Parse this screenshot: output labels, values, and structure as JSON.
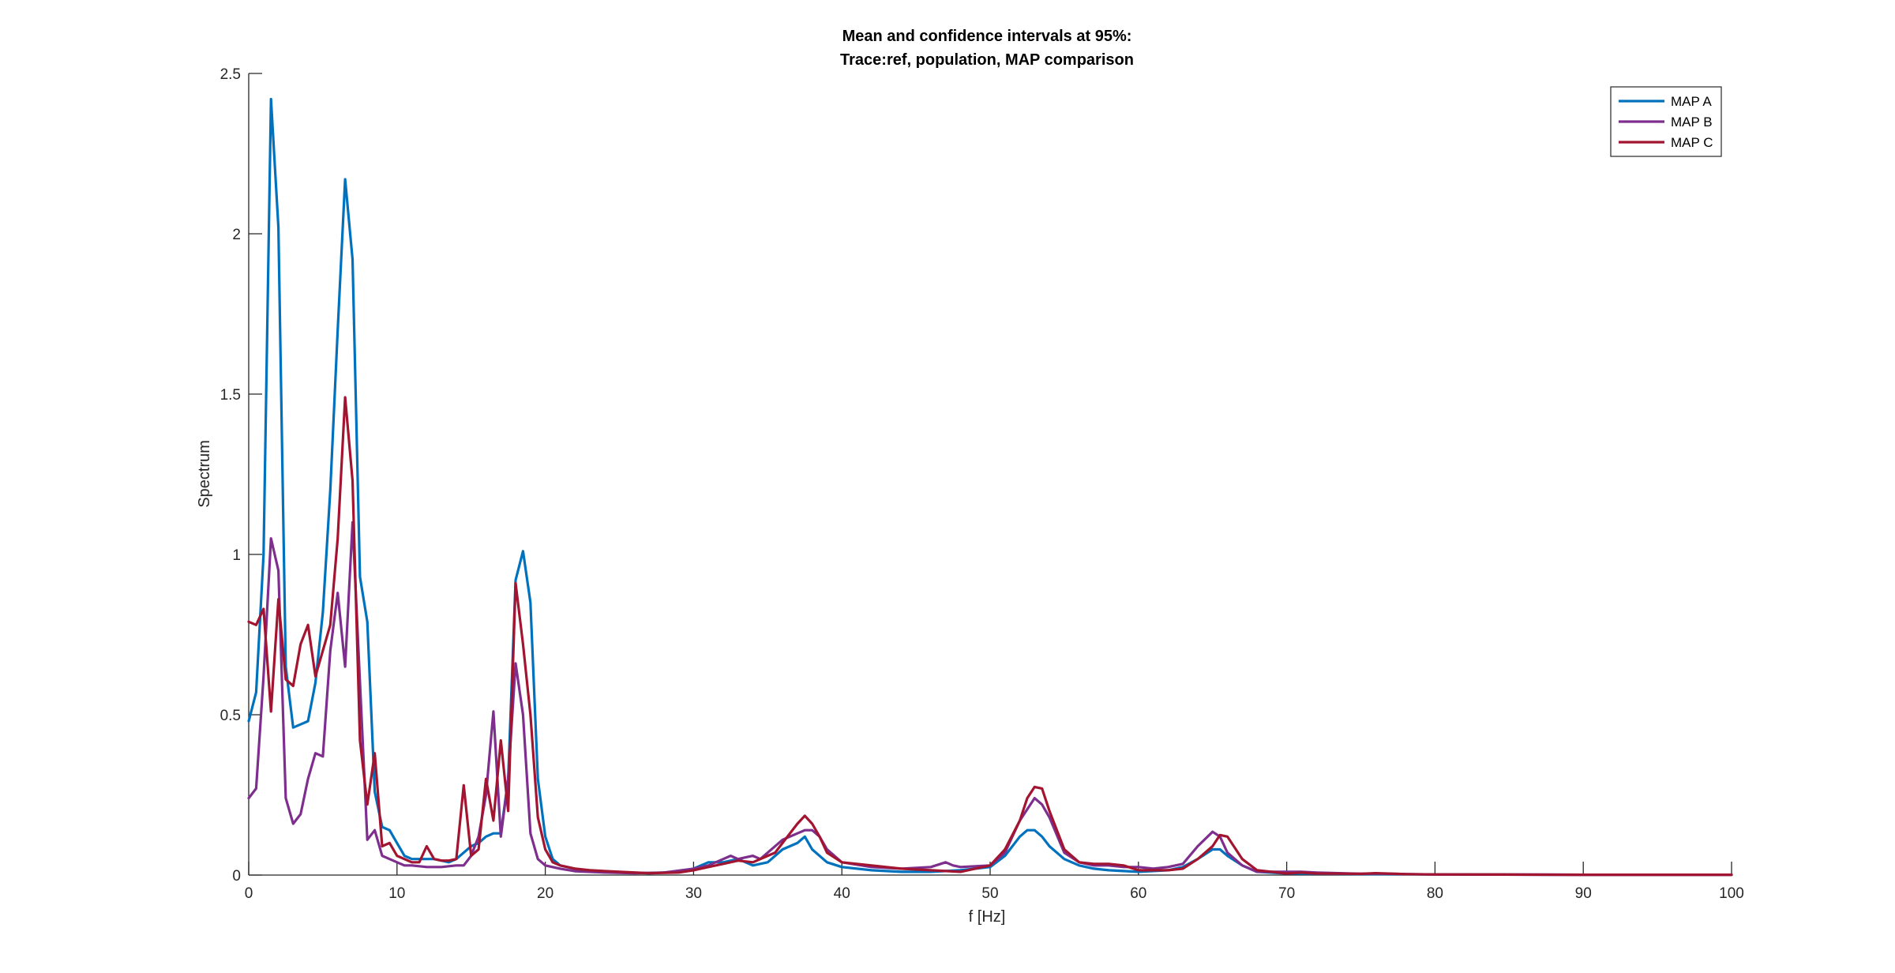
{
  "chart_data": {
    "type": "line",
    "title_line1": "Mean and confidence intervals at 95%:",
    "title_line2": "Trace:ref, population, MAP comparison",
    "xlabel": "f [Hz]",
    "ylabel": "Spectrum",
    "xlim": [
      0,
      100
    ],
    "ylim": [
      0,
      2.5
    ],
    "xticks": [
      0,
      10,
      20,
      30,
      40,
      50,
      60,
      70,
      80,
      90,
      100
    ],
    "yticks": [
      0,
      0.5,
      1,
      1.5,
      2,
      2.5
    ],
    "xtick_labels": [
      "0",
      "10",
      "20",
      "30",
      "40",
      "50",
      "60",
      "70",
      "80",
      "90",
      "100"
    ],
    "ytick_labels": [
      "0",
      "0.5",
      "1",
      "1.5",
      "2",
      "2.5"
    ],
    "grid": false,
    "legend_position": "top-right",
    "series": [
      {
        "name": "MAP A",
        "color": "#0072BD",
        "points": [
          [
            0,
            0.48
          ],
          [
            0.5,
            0.57
          ],
          [
            1,
            1.0
          ],
          [
            1.5,
            2.42
          ],
          [
            2,
            2.02
          ],
          [
            2.5,
            0.65
          ],
          [
            3,
            0.46
          ],
          [
            3.5,
            0.47
          ],
          [
            4,
            0.48
          ],
          [
            4.5,
            0.6
          ],
          [
            5,
            0.82
          ],
          [
            5.5,
            1.2
          ],
          [
            6,
            1.7
          ],
          [
            6.5,
            2.17
          ],
          [
            7,
            1.92
          ],
          [
            7.5,
            0.93
          ],
          [
            8,
            0.79
          ],
          [
            8.5,
            0.26
          ],
          [
            9,
            0.15
          ],
          [
            9.5,
            0.14
          ],
          [
            10,
            0.1
          ],
          [
            10.5,
            0.06
          ],
          [
            11,
            0.05
          ],
          [
            11.5,
            0.05
          ],
          [
            12,
            0.05
          ],
          [
            12.5,
            0.05
          ],
          [
            13,
            0.045
          ],
          [
            13.5,
            0.04
          ],
          [
            14,
            0.05
          ],
          [
            14.5,
            0.07
          ],
          [
            15,
            0.09
          ],
          [
            15.5,
            0.1
          ],
          [
            16,
            0.12
          ],
          [
            16.5,
            0.13
          ],
          [
            17,
            0.13
          ],
          [
            17.5,
            0.3
          ],
          [
            18,
            0.92
          ],
          [
            18.5,
            1.01
          ],
          [
            19,
            0.85
          ],
          [
            19.5,
            0.3
          ],
          [
            20,
            0.12
          ],
          [
            20.5,
            0.05
          ],
          [
            21,
            0.03
          ],
          [
            22,
            0.02
          ],
          [
            23,
            0.012
          ],
          [
            25,
            0.008
          ],
          [
            27,
            0.006
          ],
          [
            29,
            0.01
          ],
          [
            30,
            0.02
          ],
          [
            31,
            0.04
          ],
          [
            32,
            0.04
          ],
          [
            33,
            0.05
          ],
          [
            34,
            0.03
          ],
          [
            35,
            0.04
          ],
          [
            36,
            0.08
          ],
          [
            37,
            0.1
          ],
          [
            37.5,
            0.12
          ],
          [
            38,
            0.08
          ],
          [
            39,
            0.04
          ],
          [
            40,
            0.025
          ],
          [
            42,
            0.015
          ],
          [
            44,
            0.01
          ],
          [
            46,
            0.01
          ],
          [
            48,
            0.015
          ],
          [
            50,
            0.025
          ],
          [
            51,
            0.06
          ],
          [
            52,
            0.12
          ],
          [
            52.5,
            0.14
          ],
          [
            53,
            0.14
          ],
          [
            53.5,
            0.12
          ],
          [
            54,
            0.09
          ],
          [
            55,
            0.05
          ],
          [
            56,
            0.03
          ],
          [
            57,
            0.02
          ],
          [
            58,
            0.015
          ],
          [
            60,
            0.01
          ],
          [
            62,
            0.015
          ],
          [
            63,
            0.025
          ],
          [
            64,
            0.05
          ],
          [
            65,
            0.08
          ],
          [
            65.5,
            0.08
          ],
          [
            66,
            0.06
          ],
          [
            67,
            0.03
          ],
          [
            68,
            0.01
          ],
          [
            70,
            0.005
          ],
          [
            75,
            0.003
          ],
          [
            80,
            0.002
          ],
          [
            90,
            0.001
          ],
          [
            100,
            0.001
          ]
        ]
      },
      {
        "name": "MAP B",
        "color": "#7E2F8E",
        "points": [
          [
            0,
            0.24
          ],
          [
            0.5,
            0.27
          ],
          [
            1,
            0.62
          ],
          [
            1.5,
            1.05
          ],
          [
            2,
            0.95
          ],
          [
            2.5,
            0.24
          ],
          [
            3,
            0.16
          ],
          [
            3.5,
            0.19
          ],
          [
            4,
            0.3
          ],
          [
            4.5,
            0.38
          ],
          [
            5,
            0.37
          ],
          [
            5.5,
            0.7
          ],
          [
            6,
            0.88
          ],
          [
            6.5,
            0.65
          ],
          [
            7,
            1.1
          ],
          [
            7.5,
            0.6
          ],
          [
            8,
            0.11
          ],
          [
            8.5,
            0.14
          ],
          [
            9,
            0.06
          ],
          [
            9.5,
            0.05
          ],
          [
            10,
            0.04
          ],
          [
            10.5,
            0.03
          ],
          [
            11,
            0.03
          ],
          [
            12,
            0.025
          ],
          [
            13,
            0.025
          ],
          [
            14,
            0.03
          ],
          [
            14.5,
            0.03
          ],
          [
            15,
            0.06
          ],
          [
            15.5,
            0.12
          ],
          [
            16,
            0.25
          ],
          [
            16.5,
            0.51
          ],
          [
            17,
            0.12
          ],
          [
            17.5,
            0.3
          ],
          [
            18,
            0.66
          ],
          [
            18.5,
            0.5
          ],
          [
            19,
            0.13
          ],
          [
            19.5,
            0.05
          ],
          [
            20,
            0.03
          ],
          [
            21,
            0.02
          ],
          [
            22,
            0.012
          ],
          [
            24,
            0.008
          ],
          [
            26,
            0.006
          ],
          [
            28,
            0.008
          ],
          [
            30,
            0.02
          ],
          [
            31,
            0.03
          ],
          [
            32,
            0.05
          ],
          [
            32.5,
            0.06
          ],
          [
            33,
            0.05
          ],
          [
            34,
            0.06
          ],
          [
            34.5,
            0.05
          ],
          [
            35,
            0.07
          ],
          [
            36,
            0.11
          ],
          [
            37,
            0.13
          ],
          [
            37.5,
            0.14
          ],
          [
            38,
            0.14
          ],
          [
            38.5,
            0.12
          ],
          [
            39,
            0.08
          ],
          [
            40,
            0.04
          ],
          [
            42,
            0.025
          ],
          [
            44,
            0.02
          ],
          [
            46,
            0.025
          ],
          [
            47,
            0.04
          ],
          [
            47.5,
            0.03
          ],
          [
            48,
            0.025
          ],
          [
            50,
            0.03
          ],
          [
            51,
            0.07
          ],
          [
            52,
            0.17
          ],
          [
            53,
            0.24
          ],
          [
            53.5,
            0.22
          ],
          [
            54,
            0.18
          ],
          [
            55,
            0.07
          ],
          [
            56,
            0.04
          ],
          [
            57,
            0.03
          ],
          [
            58,
            0.03
          ],
          [
            59,
            0.025
          ],
          [
            60,
            0.025
          ],
          [
            61,
            0.02
          ],
          [
            62,
            0.025
          ],
          [
            63,
            0.035
          ],
          [
            64,
            0.09
          ],
          [
            65,
            0.135
          ],
          [
            65.5,
            0.12
          ],
          [
            66,
            0.07
          ],
          [
            67,
            0.03
          ],
          [
            68,
            0.01
          ],
          [
            70,
            0.01
          ],
          [
            71,
            0.01
          ],
          [
            72,
            0.008
          ],
          [
            75,
            0.004
          ],
          [
            76,
            0.005
          ],
          [
            78,
            0.003
          ],
          [
            80,
            0.002
          ],
          [
            90,
            0.001
          ],
          [
            100,
            0.001
          ]
        ]
      },
      {
        "name": "MAP C",
        "color": "#A2142F",
        "points": [
          [
            0,
            0.79
          ],
          [
            0.5,
            0.78
          ],
          [
            1,
            0.83
          ],
          [
            1.5,
            0.51
          ],
          [
            2,
            0.86
          ],
          [
            2.5,
            0.61
          ],
          [
            3,
            0.59
          ],
          [
            3.5,
            0.72
          ],
          [
            4,
            0.78
          ],
          [
            4.5,
            0.62
          ],
          [
            5,
            0.7
          ],
          [
            5.5,
            0.78
          ],
          [
            6,
            1.05
          ],
          [
            6.5,
            1.49
          ],
          [
            7,
            1.23
          ],
          [
            7.5,
            0.42
          ],
          [
            8,
            0.22
          ],
          [
            8.5,
            0.38
          ],
          [
            9,
            0.09
          ],
          [
            9.5,
            0.1
          ],
          [
            10,
            0.06
          ],
          [
            11,
            0.04
          ],
          [
            11.5,
            0.04
          ],
          [
            12,
            0.09
          ],
          [
            12.5,
            0.05
          ],
          [
            13,
            0.045
          ],
          [
            13.5,
            0.045
          ],
          [
            14,
            0.05
          ],
          [
            14.5,
            0.28
          ],
          [
            15,
            0.06
          ],
          [
            15.5,
            0.08
          ],
          [
            16,
            0.3
          ],
          [
            16.5,
            0.17
          ],
          [
            17,
            0.42
          ],
          [
            17.5,
            0.2
          ],
          [
            18,
            0.91
          ],
          [
            18.5,
            0.72
          ],
          [
            19,
            0.5
          ],
          [
            19.5,
            0.18
          ],
          [
            20,
            0.08
          ],
          [
            20.5,
            0.04
          ],
          [
            21,
            0.03
          ],
          [
            22,
            0.02
          ],
          [
            23,
            0.015
          ],
          [
            25,
            0.01
          ],
          [
            27,
            0.006
          ],
          [
            29,
            0.008
          ],
          [
            30,
            0.015
          ],
          [
            31,
            0.025
          ],
          [
            32,
            0.035
          ],
          [
            33,
            0.045
          ],
          [
            34,
            0.04
          ],
          [
            35,
            0.06
          ],
          [
            35.5,
            0.07
          ],
          [
            36,
            0.1
          ],
          [
            37,
            0.16
          ],
          [
            37.5,
            0.185
          ],
          [
            38,
            0.16
          ],
          [
            38.5,
            0.12
          ],
          [
            39,
            0.07
          ],
          [
            40,
            0.04
          ],
          [
            42,
            0.03
          ],
          [
            44,
            0.02
          ],
          [
            46,
            0.015
          ],
          [
            48,
            0.01
          ],
          [
            50,
            0.03
          ],
          [
            51,
            0.08
          ],
          [
            52,
            0.17
          ],
          [
            52.5,
            0.24
          ],
          [
            53,
            0.275
          ],
          [
            53.5,
            0.27
          ],
          [
            54,
            0.2
          ],
          [
            55,
            0.08
          ],
          [
            56,
            0.04
          ],
          [
            57,
            0.035
          ],
          [
            58,
            0.035
          ],
          [
            59,
            0.03
          ],
          [
            60,
            0.015
          ],
          [
            62,
            0.015
          ],
          [
            63,
            0.02
          ],
          [
            64,
            0.05
          ],
          [
            65,
            0.09
          ],
          [
            65.5,
            0.125
          ],
          [
            66,
            0.12
          ],
          [
            67,
            0.05
          ],
          [
            68,
            0.015
          ],
          [
            70,
            0.005
          ],
          [
            71,
            0.008
          ],
          [
            72,
            0.005
          ],
          [
            75,
            0.004
          ],
          [
            76,
            0.006
          ],
          [
            78,
            0.003
          ],
          [
            80,
            0.002
          ],
          [
            90,
            0.001
          ],
          [
            100,
            0.001
          ]
        ]
      }
    ]
  }
}
